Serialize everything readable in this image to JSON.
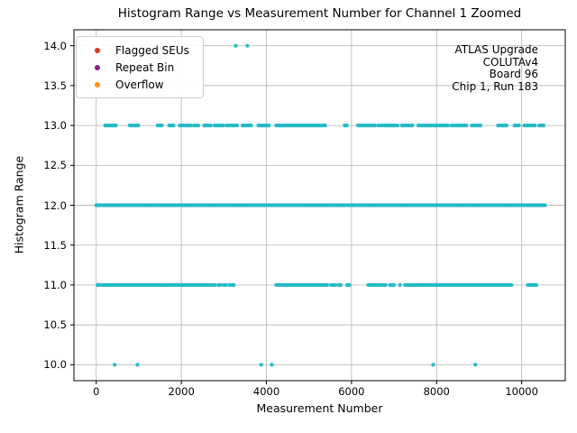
{
  "chart_data": {
    "type": "scatter",
    "title": "Histogram Range vs Measurement Number for Channel 1 Zoomed",
    "xlabel": "Measurement Number",
    "ylabel": "Histogram Range",
    "xlim": [
      -525,
      11025
    ],
    "ylim": [
      9.8,
      14.2
    ],
    "x_ticks": [
      0,
      2000,
      4000,
      6000,
      8000,
      10000
    ],
    "x_tick_labels": [
      "0",
      "2000",
      "4000",
      "6000",
      "8000",
      "10000"
    ],
    "y_ticks": [
      14.0,
      13.5,
      13.0,
      12.5,
      12.0,
      11.5,
      11.0,
      10.5,
      10.0
    ],
    "y_tick_labels": [
      "14.0",
      "13.5",
      "13.0",
      "12.5",
      "12.0",
      "11.5",
      "11.0",
      "10.5",
      "10.0"
    ],
    "grid": true,
    "grid_color": "#bbbbbb",
    "frame_color": "#000000",
    "marker": {
      "color": "#1fb9c6",
      "radius": 2.2,
      "opacity": 0.92,
      "step": 50
    },
    "legend": {
      "position": "upper-left",
      "entries": [
        {
          "label": "Flagged SEUs",
          "color": "#d9342b"
        },
        {
          "label": "Repeat Bin",
          "color": "#871e87"
        },
        {
          "label": "Overflow",
          "color": "#ff9015"
        }
      ]
    },
    "annotation": {
      "align": "right",
      "lines": [
        "ATLAS Upgrade",
        "COLUTAv4",
        "Board 96",
        "Chip 1, Run 183"
      ]
    },
    "series": [
      {
        "name": "range-14",
        "y": 14,
        "points": [
          3280,
          3550
        ]
      },
      {
        "name": "range-13",
        "y": 13,
        "segments": [
          [
            210,
            475
          ],
          [
            785,
            1030
          ],
          [
            1440,
            1580
          ],
          [
            1715,
            1820
          ],
          [
            1960,
            2060
          ],
          [
            2125,
            2240
          ],
          [
            2300,
            2435
          ],
          [
            2540,
            2720
          ],
          [
            2780,
            3010
          ],
          [
            3060,
            3335
          ],
          [
            3440,
            3640
          ],
          [
            3810,
            4085
          ],
          [
            4230,
            5400
          ],
          [
            5840,
            5915
          ],
          [
            6150,
            6550
          ],
          [
            6630,
            7110
          ],
          [
            7180,
            7460
          ],
          [
            7570,
            8290
          ],
          [
            8350,
            8700
          ],
          [
            8830,
            9030
          ],
          [
            9445,
            9650
          ],
          [
            9835,
            9940
          ],
          [
            10060,
            10310
          ],
          [
            10415,
            10520
          ]
        ]
      },
      {
        "name": "range-12",
        "y": 12,
        "segments": [
          [
            0,
            10560
          ]
        ]
      },
      {
        "name": "range-11",
        "y": 11,
        "segments": [
          [
            30,
            2680
          ],
          [
            2740,
            2820
          ],
          [
            2870,
            2940
          ],
          [
            3000,
            3070
          ],
          [
            3130,
            3260
          ],
          [
            4230,
            5450
          ],
          [
            5520,
            5640
          ],
          [
            5700,
            5775
          ],
          [
            5900,
            5950
          ],
          [
            6395,
            6650
          ],
          [
            6700,
            6830
          ],
          [
            6900,
            7010
          ],
          [
            7140,
            7170
          ],
          [
            7260,
            9795
          ],
          [
            10145,
            10350
          ]
        ]
      },
      {
        "name": "range-10",
        "y": 10,
        "points": [
          433,
          969,
          3876,
          4124,
          7920,
          8910
        ]
      }
    ]
  }
}
